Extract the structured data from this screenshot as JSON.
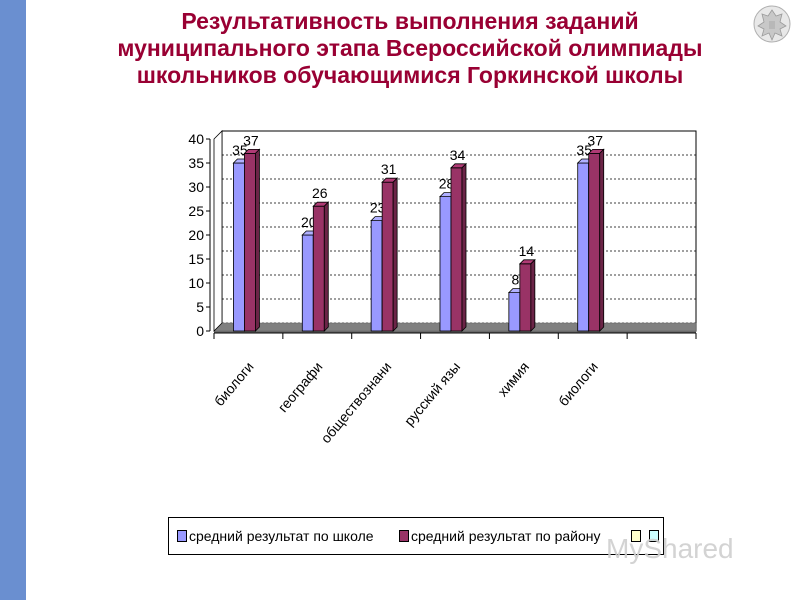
{
  "slide": {
    "title_lines": [
      "Результативность выполнения заданий",
      "муниципального этапа Всероссийской олимпиады",
      "школьников обучающимися Горкинской школы"
    ],
    "title_color": "#990033",
    "band_color": "#6a8fd0",
    "emblem_icon": "coat-of-arms-icon",
    "watermark_text": "MyShared"
  },
  "chart_data": {
    "type": "bar",
    "categories": [
      "биологи",
      "географи",
      "обществознани",
      "русский язы",
      "химия",
      "биологи",
      ""
    ],
    "series": [
      {
        "name": "средний результат по школе",
        "values": [
          35,
          20,
          23,
          28,
          8,
          35,
          null
        ],
        "color": "#9999ff"
      },
      {
        "name": "средний результат по району",
        "values": [
          37,
          26,
          31,
          34,
          14,
          37,
          null
        ],
        "color": "#993366"
      },
      {
        "name": "",
        "values": [
          null,
          null,
          null,
          null,
          null,
          null,
          null
        ],
        "color": "#ffffcc"
      },
      {
        "name": "",
        "values": [
          null,
          null,
          null,
          null,
          null,
          null,
          null
        ],
        "color": "#ccffff"
      }
    ],
    "y_ticks": [
      "0",
      "5",
      "10",
      "15",
      "20",
      "25",
      "30",
      "35",
      "40"
    ],
    "ylim": [
      0,
      40
    ],
    "grid": true,
    "style": "3d-bar",
    "legend_position": "bottom"
  }
}
